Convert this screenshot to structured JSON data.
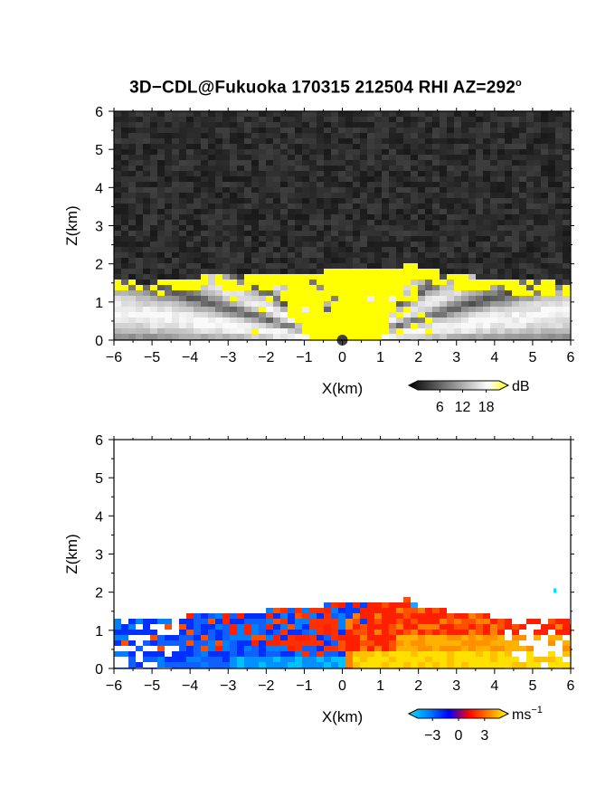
{
  "title": "3D−CDL@Fukuoka 170315 212504 RHI AZ=292",
  "title_superscript": "o",
  "chart_data": [
    {
      "type": "heatmap",
      "quantity": "dB",
      "xlabel": "X(km)",
      "ylabel": "Z(km)",
      "xlim": [
        -6,
        6
      ],
      "ylim": [
        0,
        6
      ],
      "xticks": [
        "−6",
        "−5",
        "−4",
        "−3",
        "−2",
        "−1",
        "0",
        "1",
        "2",
        "3",
        "4",
        "5",
        "6"
      ],
      "yticks": [
        "0",
        "1",
        "2",
        "3",
        "4",
        "5",
        "6"
      ],
      "background": "dark gray noise (low signal) above echo top",
      "echo_top_km": [
        [
          -6,
          1.55
        ],
        [
          -5,
          1.5
        ],
        [
          -4,
          1.65
        ],
        [
          -3,
          1.7
        ],
        [
          -2,
          1.72
        ],
        [
          -1,
          1.75
        ],
        [
          0,
          1.85
        ],
        [
          1,
          1.9
        ],
        [
          1.8,
          1.97
        ],
        [
          2.5,
          1.8
        ],
        [
          3,
          1.7
        ],
        [
          4,
          1.62
        ],
        [
          5,
          1.55
        ],
        [
          6,
          1.5
        ]
      ],
      "saturated_color": "#ffff00",
      "colorbar": {
        "label": "dB",
        "ticks": [
          "6",
          "12",
          "18"
        ],
        "colors": [
          "#000000",
          "#404040",
          "#808080",
          "#c0c0c0",
          "#ffffff",
          "#ffff00"
        ]
      }
    },
    {
      "type": "heatmap",
      "quantity": "radial velocity",
      "xlabel": "X(km)",
      "ylabel": "Z(km)",
      "xlim": [
        -6,
        6
      ],
      "ylim": [
        0,
        6
      ],
      "xticks": [
        "−6",
        "−5",
        "−4",
        "−3",
        "−2",
        "−1",
        "0",
        "1",
        "2",
        "3",
        "4",
        "5",
        "6"
      ],
      "yticks": [
        "0",
        "1",
        "2",
        "3",
        "4",
        "5",
        "6"
      ],
      "background": "white (no data) above echo top",
      "pattern": "negative (blue) for x<0, positive (red/orange/yellow) for x>0",
      "colorbar": {
        "label": "ms",
        "label_exponent": "−1",
        "ticks": [
          "−3",
          "0",
          "3"
        ],
        "colors": [
          "#00e0ff",
          "#0080ff",
          "#0000ff",
          "#ff0000",
          "#ff8000",
          "#ffff00"
        ]
      }
    }
  ]
}
